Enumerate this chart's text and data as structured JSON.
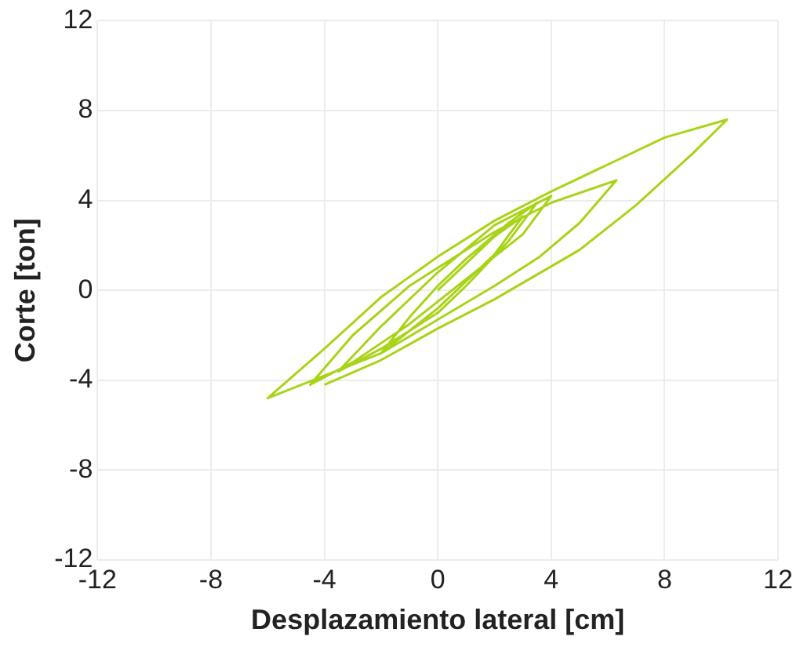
{
  "chart_data": {
    "type": "line",
    "xlabel": "Desplazamiento lateral [cm]",
    "ylabel": "Corte [ton]",
    "xlim": [
      -12,
      12
    ],
    "xticks": [
      -12,
      -8,
      -4,
      0,
      4,
      8,
      12
    ],
    "ylim": [
      -12,
      12
    ],
    "yticks": [
      -12,
      -8,
      -4,
      0,
      4,
      8,
      12
    ],
    "grid": true,
    "marker": "none",
    "line_style": "solid",
    "series": [
      {
        "color": "#a8d418",
        "x": [
          0,
          1,
          2,
          3,
          2,
          1,
          0,
          -1,
          -2,
          -1,
          0,
          1,
          2.5,
          3.5,
          2.5,
          1,
          0,
          -2,
          -3.5,
          -2,
          0,
          2,
          4,
          3,
          1,
          -1,
          -3,
          -4.5,
          -3,
          -1,
          0,
          2,
          4,
          6.3,
          5,
          3.6,
          2,
          0,
          -2,
          -6,
          -4,
          -2,
          0,
          2,
          4,
          6,
          8,
          10.2,
          9,
          7,
          5,
          3.5,
          2,
          0,
          -2,
          -4
        ],
        "values": [
          0,
          1.2,
          2.4,
          3.3,
          1.6,
          0.4,
          -0.8,
          -1.8,
          -2.8,
          -1.2,
          0.2,
          1.4,
          3,
          3.9,
          2.2,
          0.2,
          -1,
          -2.6,
          -3.6,
          -1.6,
          0.8,
          2.9,
          4.2,
          2.5,
          0.5,
          -1.5,
          -3.2,
          -4.2,
          -2,
          0.2,
          1,
          2.6,
          3.9,
          4.9,
          3,
          1.5,
          0.2,
          -1.3,
          -2.8,
          -4.8,
          -2.6,
          -0.3,
          1.5,
          3.1,
          4.4,
          5.6,
          6.8,
          7.6,
          6.1,
          3.8,
          1.8,
          0.7,
          -0.4,
          -1.7,
          -3.1,
          -4.2
        ]
      }
    ]
  }
}
